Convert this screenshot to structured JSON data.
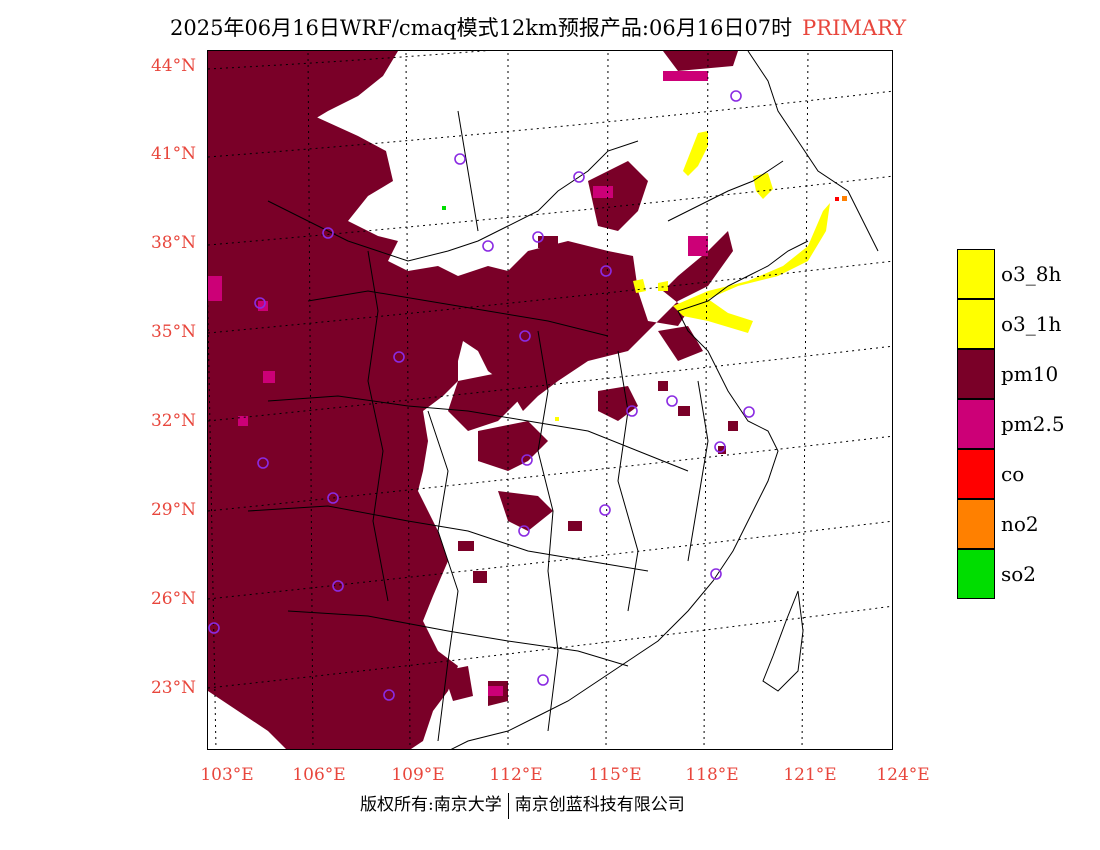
{
  "title": {
    "main": "2025年06月16日WRF/cmaq模式12km预报产品:06月16日07时",
    "tag": "PRIMARY",
    "tag_color": "#e8463c"
  },
  "axes": {
    "lat_labels": [
      "44°N",
      "41°N",
      "38°N",
      "35°N",
      "32°N",
      "29°N",
      "26°N",
      "23°N"
    ],
    "lon_labels": [
      "103°E",
      "106°E",
      "109°E",
      "112°E",
      "115°E",
      "118°E",
      "121°E",
      "124°E"
    ],
    "label_color": "#e8463c"
  },
  "legend": [
    {
      "label": "o3_8h",
      "color": "#ffff00"
    },
    {
      "label": "o3_1h",
      "color": "#ffff00"
    },
    {
      "label": "pm10",
      "color": "#7a0028"
    },
    {
      "label": "pm2.5",
      "color": "#cc0077"
    },
    {
      "label": "co",
      "color": "#ff0000"
    },
    {
      "label": "no2",
      "color": "#ff8000"
    },
    {
      "label": "so2",
      "color": "#00dd00"
    }
  ],
  "footer": {
    "left": "版权所有:南京大学",
    "right": "南京创蓝科技有限公司"
  },
  "colors": {
    "pm10": "#7a0028",
    "pm25": "#cc0077",
    "o3": "#ffff00",
    "station": "#8a2be2"
  }
}
